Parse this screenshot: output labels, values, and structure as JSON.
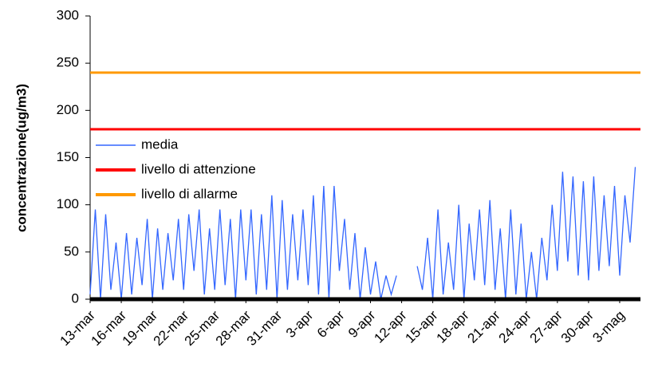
{
  "chart_data": {
    "type": "line",
    "y_label": "concentrazione(ug/m3)",
    "ylim": [
      0,
      300
    ],
    "yticks": [
      0,
      50,
      100,
      150,
      200,
      250,
      300
    ],
    "xlim": [
      0,
      53
    ],
    "xticks": [
      {
        "value": 0,
        "label": "13-mar"
      },
      {
        "value": 3,
        "label": "16-mar"
      },
      {
        "value": 6,
        "label": "19-mar"
      },
      {
        "value": 9,
        "label": "22-mar"
      },
      {
        "value": 12,
        "label": "25-mar"
      },
      {
        "value": 15,
        "label": "28-mar"
      },
      {
        "value": 18,
        "label": "31-mar"
      },
      {
        "value": 21,
        "label": "3-apr"
      },
      {
        "value": 24,
        "label": "6-apr"
      },
      {
        "value": 27,
        "label": "9-apr"
      },
      {
        "value": 30,
        "label": "12-apr"
      },
      {
        "value": 33,
        "label": "15-apr"
      },
      {
        "value": 36,
        "label": "18-apr"
      },
      {
        "value": 39,
        "label": "21-apr"
      },
      {
        "value": 42,
        "label": "24-apr"
      },
      {
        "value": 45,
        "label": "27-apr"
      },
      {
        "value": 48,
        "label": "30-apr"
      },
      {
        "value": 51,
        "label": "3-mag"
      }
    ],
    "series": [
      {
        "name": "media",
        "color": "#3366ff",
        "x": [
          0,
          0.5,
          1,
          1.5,
          2,
          2.5,
          3,
          3.5,
          4,
          4.5,
          5,
          5.5,
          6,
          6.5,
          7,
          7.5,
          8,
          8.5,
          9,
          9.5,
          10,
          10.5,
          11,
          11.5,
          12,
          12.5,
          13,
          13.5,
          14,
          14.5,
          15,
          15.5,
          16,
          16.5,
          17,
          17.5,
          18,
          18.5,
          19,
          19.5,
          20,
          20.5,
          21,
          21.5,
          22,
          22.5,
          23,
          23.5,
          24,
          24.5,
          25,
          25.5,
          26,
          26.5,
          27,
          27.5,
          28,
          28.5,
          29,
          29.5,
          30,
          30.5,
          31,
          31.5,
          32,
          32.5,
          33,
          33.5,
          34,
          34.5,
          35,
          35.5,
          36,
          36.5,
          37,
          37.5,
          38,
          38.5,
          39,
          39.5,
          40,
          40.5,
          41,
          41.5,
          42,
          42.5,
          43,
          43.5,
          44,
          44.5,
          45,
          45.5,
          46,
          46.5,
          47,
          47.5,
          48,
          48.5,
          49,
          49.5,
          50,
          50.5,
          51,
          51.5,
          52,
          52.5
        ],
        "values": [
          5,
          95,
          0,
          90,
          10,
          60,
          0,
          70,
          5,
          65,
          15,
          85,
          0,
          75,
          10,
          70,
          20,
          85,
          10,
          90,
          30,
          95,
          5,
          75,
          10,
          95,
          15,
          85,
          0,
          95,
          20,
          95,
          5,
          90,
          10,
          110,
          0,
          105,
          10,
          90,
          20,
          95,
          15,
          110,
          5,
          120,
          0,
          120,
          30,
          85,
          10,
          70,
          0,
          55,
          5,
          40,
          0,
          25,
          5,
          25,
          null,
          null,
          null,
          35,
          10,
          65,
          0,
          95,
          5,
          60,
          10,
          100,
          0,
          80,
          20,
          95,
          15,
          105,
          10,
          75,
          0,
          95,
          5,
          80,
          0,
          50,
          0,
          65,
          20,
          100,
          30,
          135,
          40,
          130,
          25,
          125,
          20,
          130,
          30,
          110,
          35,
          120,
          25,
          110,
          60,
          140
        ]
      },
      {
        "name": "livello di attenzione",
        "color": "#ff0000",
        "x": [
          0,
          53
        ],
        "values": [
          180,
          180
        ]
      },
      {
        "name": "livello di allarme",
        "color": "#ff9900",
        "x": [
          0,
          53
        ],
        "values": [
          240,
          240
        ]
      }
    ]
  }
}
